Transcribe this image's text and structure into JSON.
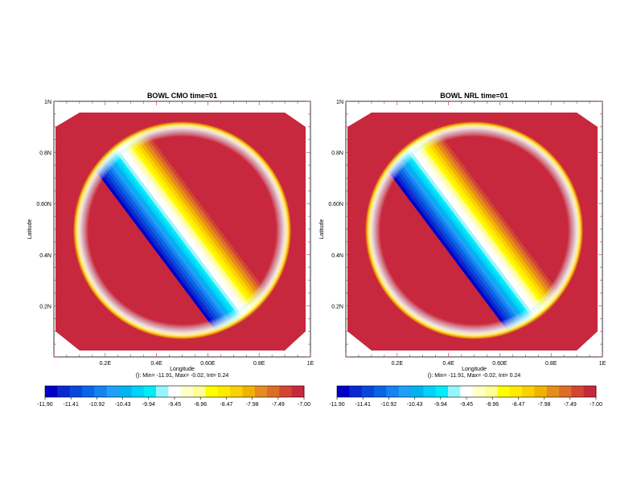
{
  "colors": {
    "outer": "#c8283d",
    "palette": [
      "#0000c8",
      "#0a28d2",
      "#0a46dc",
      "#0a64e6",
      "#1482f0",
      "#1ea0fa",
      "#00b4f0",
      "#00d2fa",
      "#00ebfa",
      "#96f5ff",
      "#ffffff",
      "#ffffc8",
      "#ffff96",
      "#ffff00",
      "#ffeb00",
      "#fad200",
      "#f0b400",
      "#e68c1e",
      "#dc6e28",
      "#d24632",
      "#c8283d"
    ]
  },
  "chart_data": [
    {
      "type": "heatmap",
      "title": "BOWL CMO time=01",
      "xlabel": "Longitude",
      "ylabel": "Latitude",
      "xlim": [
        0,
        1
      ],
      "ylim": [
        0,
        1
      ],
      "xticks": [
        "0.2E",
        "0.4E",
        "0.60E",
        "0.8E",
        "1E"
      ],
      "yticks": [
        "0.2N",
        "0.4N",
        "0.60N",
        "0.8N",
        "1N"
      ],
      "stats": "(): Min= -11.91, Max= -0.02, Int= 0.24",
      "colorbar_ticks": [
        "-11.90",
        "-11.41",
        "-10.92",
        "-10.43",
        "-9.94",
        "-9.45",
        "-8.96",
        "-8.47",
        "-7.98",
        "-7.49",
        "-7.00"
      ],
      "colorbar_range": [
        -11.9,
        -7.0
      ]
    },
    {
      "type": "heatmap",
      "title": "BOWL NRL time=01",
      "xlabel": "Longitude",
      "ylabel": "Latitude",
      "xlim": [
        0,
        1
      ],
      "ylim": [
        0,
        1
      ],
      "xticks": [
        "0.2E",
        "0.4E",
        "0.60E",
        "0.8E",
        "1E"
      ],
      "yticks": [
        "0.2N",
        "0.4N",
        "0.60N",
        "0.8N",
        "1N"
      ],
      "stats": "(): Min= -11.91, Max= -0.02, Int= 0.24",
      "colorbar_ticks": [
        "-11.90",
        "-11.41",
        "-10.92",
        "-10.43",
        "-9.94",
        "-9.45",
        "-8.96",
        "-8.47",
        "-7.98",
        "-7.49",
        "-7.00"
      ],
      "colorbar_range": [
        -11.9,
        -7.0
      ]
    }
  ]
}
